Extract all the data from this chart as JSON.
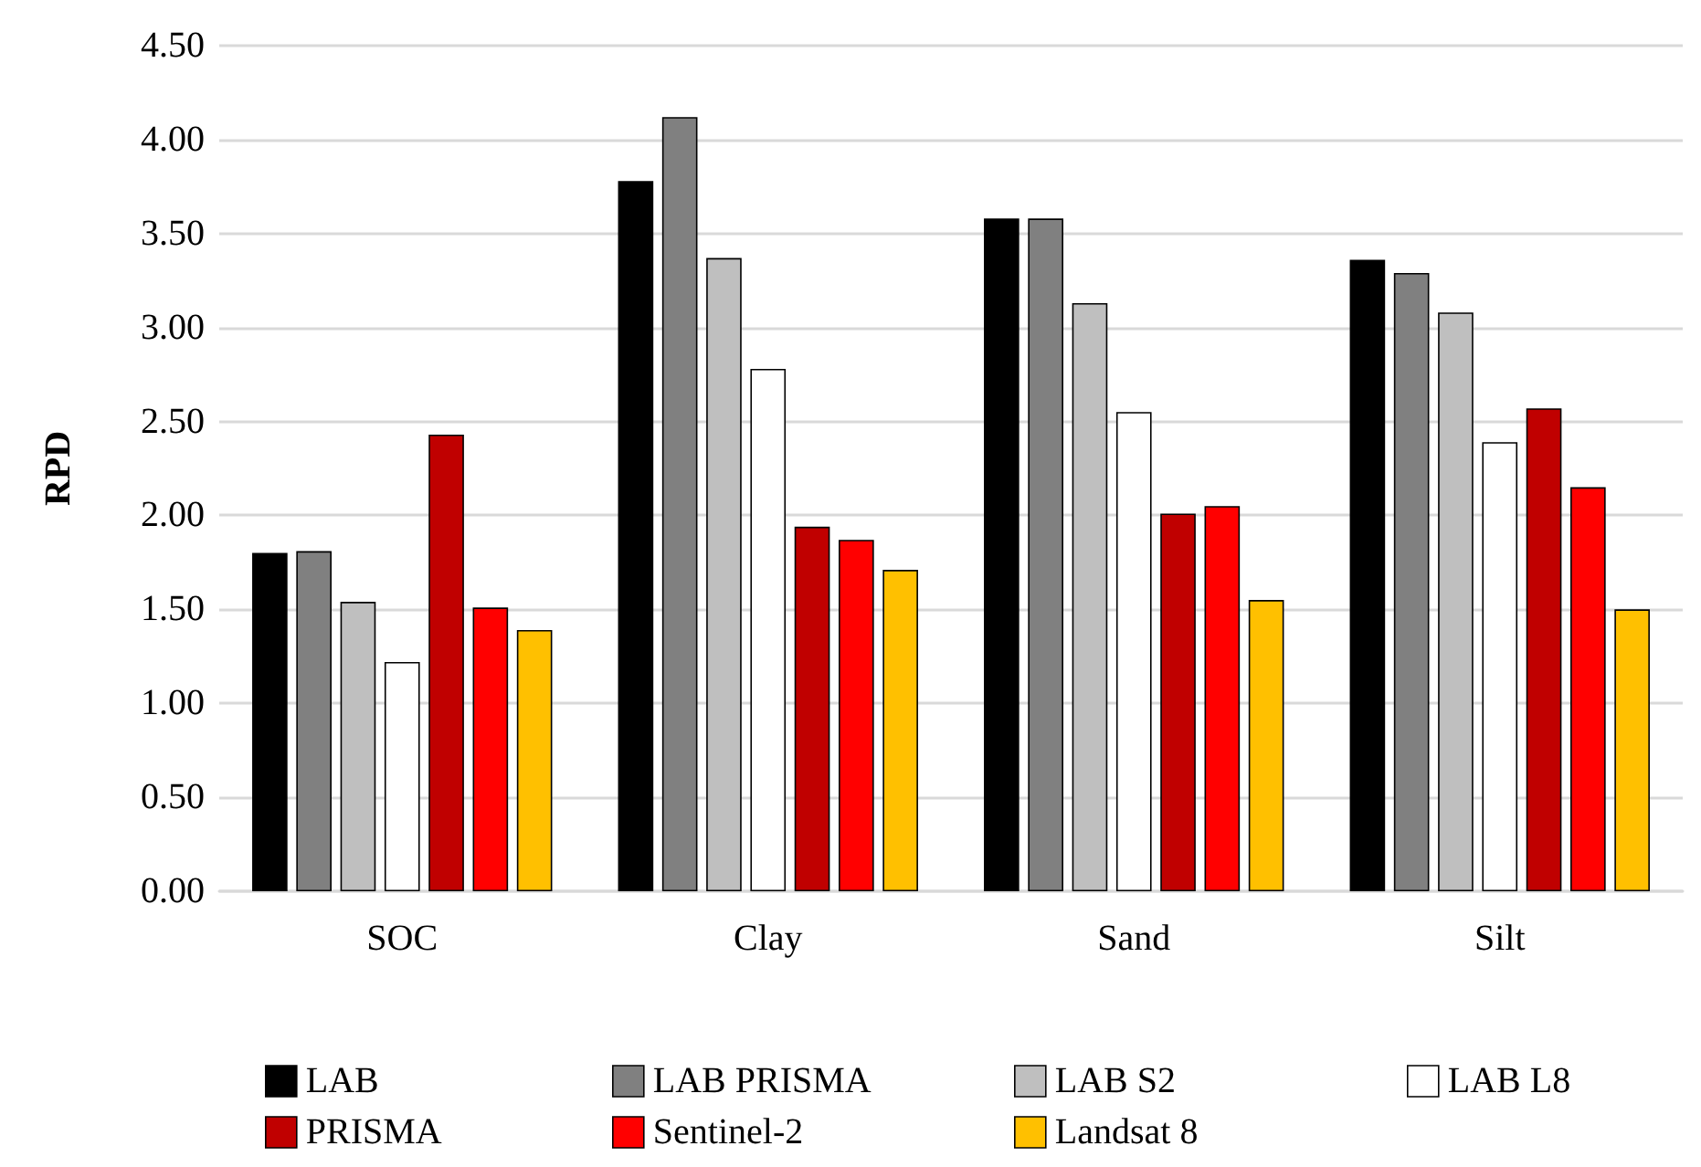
{
  "chart_data": {
    "type": "bar",
    "ylabel": "RPD",
    "categories": [
      "SOC",
      "Clay",
      "Sand",
      "Silt"
    ],
    "series": [
      {
        "name": "LAB",
        "color": "#000000",
        "values": [
          1.8,
          3.78,
          3.58,
          3.36
        ]
      },
      {
        "name": "LAB PRISMA",
        "color": "#808080",
        "values": [
          1.81,
          4.12,
          3.58,
          3.29
        ]
      },
      {
        "name": "LAB S2",
        "color": "#bfbfbf",
        "values": [
          1.54,
          3.37,
          3.13,
          3.08
        ]
      },
      {
        "name": "LAB L8",
        "color": "#ffffff",
        "values": [
          1.22,
          2.78,
          2.55,
          2.39
        ]
      },
      {
        "name": "PRISMA",
        "color": "#c00000",
        "values": [
          2.43,
          1.94,
          2.01,
          2.57
        ]
      },
      {
        "name": "Sentinel-2",
        "color": "#ff0000",
        "values": [
          1.51,
          1.87,
          2.05,
          2.15
        ]
      },
      {
        "name": "Landsat 8",
        "color": "#ffc000",
        "values": [
          1.39,
          1.71,
          1.55,
          1.5
        ]
      }
    ],
    "ylim": [
      0,
      4.5
    ],
    "yticks": [
      {
        "value": 0,
        "label": "0.00"
      },
      {
        "value": 0.5,
        "label": "0.50"
      },
      {
        "value": 1,
        "label": "1.00"
      },
      {
        "value": 1.5,
        "label": "1.50"
      },
      {
        "value": 2,
        "label": "2.00"
      },
      {
        "value": 2.5,
        "label": "2.50"
      },
      {
        "value": 3,
        "label": "3.00"
      },
      {
        "value": 3.5,
        "label": "3.50"
      },
      {
        "value": 4,
        "label": "4.00"
      },
      {
        "value": 4.5,
        "label": "4.50"
      }
    ],
    "grid": "y",
    "legend": "bottom"
  }
}
